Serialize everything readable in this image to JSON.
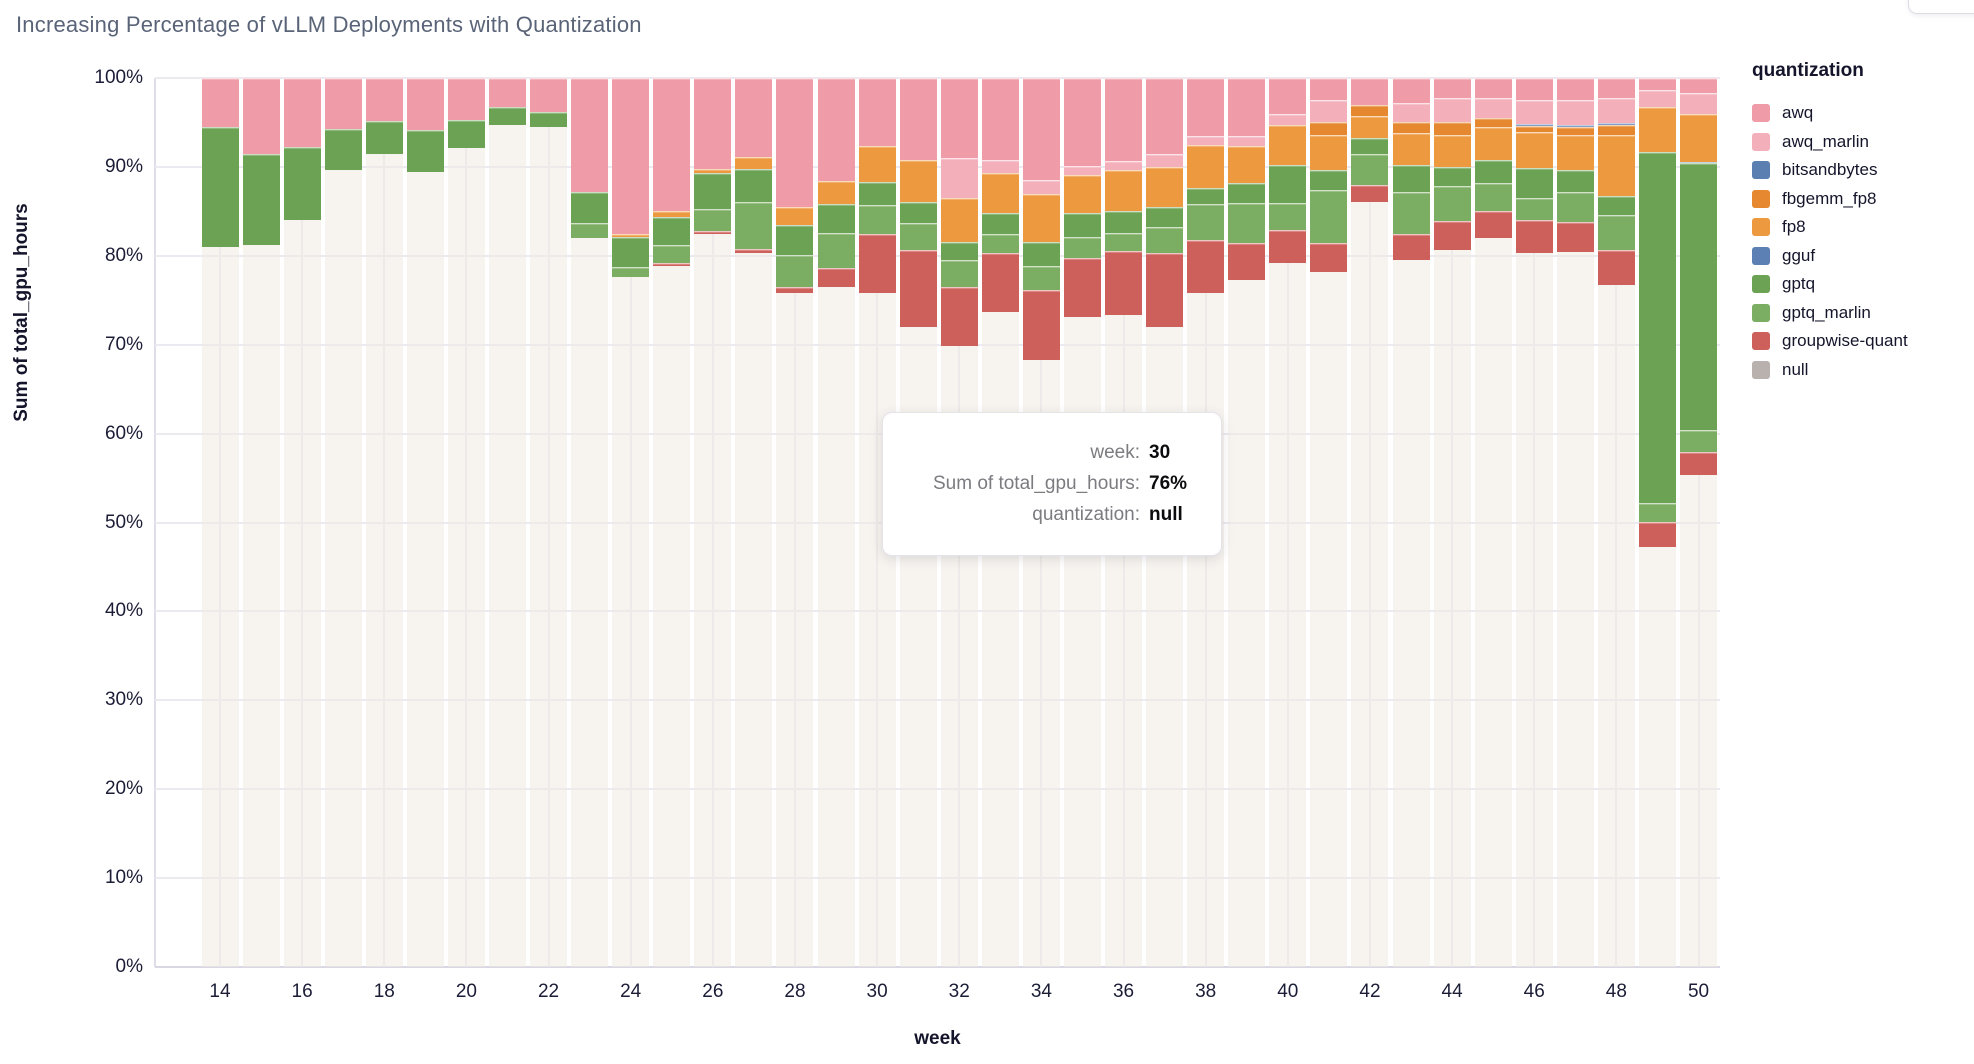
{
  "page": {
    "title": "Increasing Percentage of vLLM Deployments with Quantization"
  },
  "chart_data": {
    "type": "bar",
    "variant": "stacked-percent-column",
    "title": "Increasing Percentage of vLLM Deployments with Quantization",
    "xlabel": "week",
    "ylabel": "Sum of total_gpu_hours",
    "ylim": [
      0,
      100
    ],
    "grid": true,
    "legend_position": "right",
    "legend_title": "quantization",
    "x": [
      14,
      15,
      16,
      17,
      18,
      19,
      20,
      21,
      22,
      23,
      24,
      25,
      26,
      27,
      28,
      29,
      30,
      31,
      32,
      33,
      34,
      35,
      36,
      37,
      38,
      39,
      40,
      41,
      42,
      43,
      44,
      45,
      46,
      47,
      48,
      49,
      50
    ],
    "x_tick_labels": [
      "14",
      "16",
      "18",
      "20",
      "22",
      "24",
      "26",
      "28",
      "30",
      "32",
      "34",
      "36",
      "38",
      "40",
      "42",
      "44",
      "46",
      "48",
      "50"
    ],
    "y_tick_labels": [
      "0%",
      "10%",
      "20%",
      "30%",
      "40%",
      "50%",
      "60%",
      "70%",
      "80%",
      "90%",
      "100%"
    ],
    "stack_order_note": "series listed bottom-to-top as stacked in the chart; values are percent of weekly total_gpu_hours",
    "series": [
      {
        "name": "null",
        "legend_color": "#b8b1ad",
        "bar_color": "rgba(240,233,226,0.55)",
        "values": [
          81.0,
          81.2,
          84.0,
          89.7,
          91.5,
          89.4,
          92.1,
          94.7,
          94.5,
          82.0,
          77.6,
          78.8,
          82.5,
          80.3,
          75.8,
          76.5,
          75.8,
          72.0,
          69.8,
          73.7,
          68.3,
          73.1,
          73.3,
          72.0,
          75.8,
          77.3,
          79.2,
          78.2,
          86.1,
          79.5,
          80.7,
          82.0,
          80.3,
          80.4,
          76.7,
          47.2,
          55.3
        ]
      },
      {
        "name": "groupwise-quant",
        "legend_color": "#ce605c",
        "bar_color": "#ce605c",
        "values": [
          0,
          0,
          0,
          0,
          0,
          0,
          0,
          0,
          0,
          0,
          0,
          0.4,
          0.3,
          0.5,
          0.7,
          2.1,
          6.7,
          8.7,
          6.7,
          6.6,
          7.9,
          6.6,
          7.2,
          8.3,
          6.0,
          4.1,
          3.7,
          3.2,
          1.9,
          3.0,
          3.2,
          3.0,
          3.7,
          3.4,
          4.0,
          2.9,
          2.6
        ]
      },
      {
        "name": "gptq_marlin",
        "legend_color": "#7bad63",
        "bar_color": "#7bad63",
        "values": [
          0,
          0,
          0,
          0,
          0,
          0,
          0,
          0,
          0,
          1.7,
          1.1,
          2.0,
          2.5,
          5.2,
          3.6,
          4.0,
          3.2,
          3.0,
          3.0,
          2.2,
          2.6,
          2.4,
          2.1,
          2.9,
          4.0,
          4.5,
          3.0,
          6.0,
          3.5,
          4.7,
          3.9,
          3.2,
          2.5,
          3.4,
          3.9,
          2.1,
          2.5
        ]
      },
      {
        "name": "gptq",
        "legend_color": "#6ca253",
        "bar_color": "#6ca253",
        "values": [
          13.5,
          10.2,
          8.2,
          4.6,
          3.7,
          4.7,
          3.2,
          2.0,
          1.7,
          3.5,
          3.4,
          3.2,
          4.0,
          3.8,
          3.4,
          3.2,
          2.6,
          2.4,
          2.1,
          2.3,
          2.8,
          2.7,
          2.4,
          2.3,
          1.8,
          2.3,
          4.3,
          2.3,
          1.8,
          3.0,
          2.2,
          2.6,
          3.4,
          2.5,
          2.1,
          39.5,
          30.0
        ]
      },
      {
        "name": "gguf",
        "legend_color": "#5d80b4",
        "bar_color": "#5d80b4",
        "values": [
          0,
          0,
          0,
          0,
          0,
          0,
          0,
          0,
          0,
          0,
          0,
          0,
          0,
          0,
          0,
          0,
          0,
          0,
          0,
          0,
          0,
          0,
          0,
          0,
          0,
          0,
          0,
          0,
          0,
          0,
          0,
          0,
          0,
          0,
          0,
          0,
          0.2
        ]
      },
      {
        "name": "fp8",
        "legend_color": "#ed9940",
        "bar_color": "#ed9940",
        "values": [
          0,
          0,
          0,
          0,
          0,
          0,
          0,
          0,
          0,
          0,
          0.4,
          0.6,
          0.5,
          1.3,
          2.0,
          2.6,
          4.0,
          4.7,
          4.9,
          4.5,
          5.4,
          4.3,
          4.7,
          4.5,
          4.9,
          4.1,
          4.5,
          3.9,
          2.4,
          3.6,
          3.6,
          3.7,
          4.0,
          3.9,
          6.9,
          5.0,
          5.4
        ]
      },
      {
        "name": "fbgemm_fp8",
        "legend_color": "#e5882f",
        "bar_color": "#e5882f",
        "values": [
          0,
          0,
          0,
          0,
          0,
          0,
          0,
          0,
          0,
          0,
          0,
          0,
          0,
          0,
          0,
          0,
          0,
          0,
          0,
          0,
          0,
          0,
          0,
          0,
          0,
          0,
          0,
          1.5,
          1.3,
          1.3,
          1.5,
          1.0,
          0.7,
          0.9,
          1.1,
          0,
          0
        ]
      },
      {
        "name": "bitsandbytes",
        "legend_color": "#5c7fb2",
        "bar_color": "#5c7fb2",
        "values": [
          0,
          0,
          0,
          0,
          0,
          0,
          0,
          0,
          0,
          0,
          0,
          0,
          0,
          0,
          0,
          0,
          0,
          0,
          0,
          0,
          0,
          0,
          0,
          0,
          0,
          0,
          0,
          0,
          0,
          0,
          0,
          0,
          0.2,
          0.2,
          0.2,
          0,
          0
        ]
      },
      {
        "name": "awq_marlin",
        "legend_color": "#f3afba",
        "bar_color": "#f3afba",
        "values": [
          0,
          0,
          0,
          0,
          0,
          0,
          0,
          0,
          0,
          0,
          0,
          0,
          0,
          0,
          0,
          0,
          0,
          0,
          4.5,
          1.5,
          1.5,
          1.0,
          1.0,
          1.5,
          1.0,
          1.2,
          1.3,
          2.4,
          0,
          2.1,
          2.6,
          2.2,
          2.7,
          2.8,
          2.9,
          2.0,
          2.3
        ]
      },
      {
        "name": "awq",
        "legend_color": "#ef9ca8",
        "bar_color": "#ef9ca8",
        "values": [
          5.5,
          8.6,
          7.8,
          5.7,
          4.8,
          5.9,
          4.7,
          3.3,
          3.8,
          12.8,
          17.5,
          15.0,
          10.2,
          8.9,
          14.5,
          11.6,
          7.7,
          9.2,
          9.0,
          9.2,
          11.5,
          9.9,
          9.3,
          8.5,
          6.5,
          6.5,
          4.0,
          2.5,
          3.0,
          2.8,
          2.3,
          2.3,
          2.5,
          2.5,
          2.2,
          1.3,
          1.7
        ]
      }
    ],
    "legend_entries": [
      {
        "label": "awq",
        "color": "#ef9ca8"
      },
      {
        "label": "awq_marlin",
        "color": "#f3afba"
      },
      {
        "label": "bitsandbytes",
        "color": "#5c7fb2"
      },
      {
        "label": "fbgemm_fp8",
        "color": "#e5882f"
      },
      {
        "label": "fp8",
        "color": "#ed9940"
      },
      {
        "label": "gguf",
        "color": "#5d80b4"
      },
      {
        "label": "gptq",
        "color": "#6ca253"
      },
      {
        "label": "gptq_marlin",
        "color": "#7bad63"
      },
      {
        "label": "groupwise-quant",
        "color": "#ce605c"
      },
      {
        "label": "null",
        "color": "#b8b1ad"
      }
    ]
  },
  "tooltip": {
    "rows": [
      {
        "label": "week:",
        "value": "30"
      },
      {
        "label": "Sum of total_gpu_hours:",
        "value": "76%"
      },
      {
        "label": "quantization:",
        "value": "null"
      }
    ]
  }
}
